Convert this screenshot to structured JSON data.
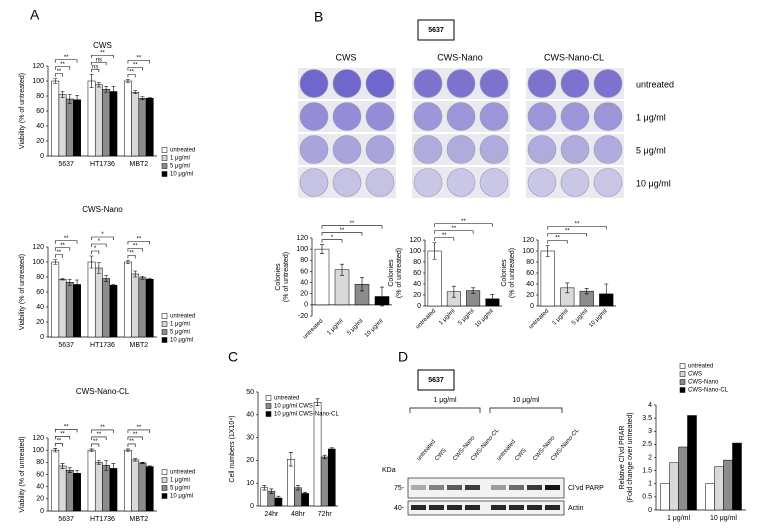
{
  "panel_labels": [
    "A",
    "B",
    "C",
    "D"
  ],
  "colony_assay": {
    "cell_line": "5637",
    "columns": [
      "CWS",
      "CWS-Nano",
      "CWS-Nano-CL"
    ],
    "rows": [
      "untreated",
      "1 μg/ml",
      "5 μg/ml",
      "10 μg/ml"
    ]
  },
  "western_blot": {
    "cell_line": "5637",
    "doses": [
      "1 μg/ml",
      "10 μg/ml"
    ],
    "lanes": [
      "untreated",
      "CWS",
      "CWS-Nano",
      "CWS-Nano-CL"
    ],
    "kda_label": "KDa",
    "markers": [
      "75-",
      "40-"
    ],
    "bands": [
      "Cl'vd PARP",
      "Actin"
    ]
  },
  "chart_data": [
    {
      "type": "bar",
      "title": "CWS",
      "ylabel": [
        "Viability (% of untreated)"
      ],
      "categories": [
        "5637",
        "HT1736",
        "MBT2"
      ],
      "series": [
        {
          "name": "untreated",
          "color": "#ffffff",
          "values": [
            100,
            100,
            100
          ],
          "errors": [
            3,
            9,
            2
          ]
        },
        {
          "name": "1 μg/ml",
          "color": "#d9d9d9",
          "values": [
            82,
            95,
            85
          ],
          "errors": [
            4,
            3,
            2
          ]
        },
        {
          "name": "5 μg/ml",
          "color": "#8c8c8c",
          "values": [
            76,
            89,
            77
          ],
          "errors": [
            6,
            4,
            2
          ]
        },
        {
          "name": "10 μg/ml",
          "color": "#000000",
          "values": [
            75,
            86,
            77
          ],
          "errors": [
            6,
            7,
            1
          ]
        }
      ],
      "significance": [
        [
          "**",
          "**",
          "**"
        ],
        [
          "ns",
          "ns",
          "**"
        ],
        [
          "**",
          "**",
          "**"
        ]
      ],
      "ylim": [
        0,
        120
      ],
      "yticks": [
        0,
        20,
        40,
        60,
        80,
        100,
        120
      ]
    },
    {
      "type": "bar",
      "title": "CWS-Nano",
      "ylabel": [
        "Viability (% of untreated)"
      ],
      "categories": [
        "5637",
        "HT1736",
        "MBT2"
      ],
      "series": [
        {
          "name": "untreated",
          "color": "#ffffff",
          "values": [
            100,
            100,
            100
          ],
          "errors": [
            3,
            8,
            2
          ]
        },
        {
          "name": "1 μg/ml",
          "color": "#d9d9d9",
          "values": [
            77,
            92,
            84
          ],
          "errors": [
            1,
            7,
            4
          ]
        },
        {
          "name": "5 μg/ml",
          "color": "#8c8c8c",
          "values": [
            73,
            78,
            79
          ],
          "errors": [
            4,
            4,
            2
          ]
        },
        {
          "name": "10 μg/ml",
          "color": "#000000",
          "values": [
            70,
            69,
            77
          ],
          "errors": [
            6,
            1,
            1
          ]
        }
      ],
      "significance": [
        [
          "**",
          "**",
          "**"
        ],
        [
          "*",
          "*",
          "*"
        ],
        [
          "**",
          "**",
          "**"
        ]
      ],
      "ylim": [
        0,
        120
      ],
      "yticks": [
        0,
        20,
        40,
        60,
        80,
        100,
        120
      ]
    },
    {
      "type": "bar",
      "title": "CWS-Nano-CL",
      "ylabel": [
        "Viability (% of untreated)"
      ],
      "categories": [
        "5637",
        "HT1736",
        "MBT2"
      ],
      "series": [
        {
          "name": "untreated",
          "color": "#ffffff",
          "values": [
            100,
            100,
            100
          ],
          "errors": [
            3,
            2,
            2
          ]
        },
        {
          "name": "1 μg/ml",
          "color": "#d9d9d9",
          "values": [
            74,
            80,
            84
          ],
          "errors": [
            4,
            3,
            2
          ]
        },
        {
          "name": "5 μg/ml",
          "color": "#8c8c8c",
          "values": [
            67,
            75,
            79
          ],
          "errors": [
            4,
            8,
            1
          ]
        },
        {
          "name": "10 μg/ml",
          "color": "#000000",
          "values": [
            62,
            70,
            73
          ],
          "errors": [
            5,
            8,
            1
          ]
        }
      ],
      "significance": [
        [
          "**",
          "**",
          "**"
        ],
        [
          "**",
          "**",
          "**"
        ],
        [
          "**",
          "**",
          "**"
        ]
      ],
      "ylim": [
        0,
        120
      ],
      "yticks": [
        0,
        20,
        40,
        60,
        80,
        100,
        120
      ]
    },
    {
      "type": "bar",
      "ylabel": [
        "Colonies",
        "(% of untreated)"
      ],
      "categories": [
        "untreated",
        "1 μg/ml",
        "5 μg/ml",
        "10 μg/ml"
      ],
      "values": [
        100,
        63,
        37,
        15
      ],
      "errors": [
        8,
        10,
        12,
        17
      ],
      "colors": [
        "#ffffff",
        "#d9d9d9",
        "#8c8c8c",
        "#000000"
      ],
      "significance": [
        "*",
        "**",
        "**"
      ],
      "ylim": [
        -20,
        120
      ],
      "yticks": [
        -20,
        0,
        20,
        40,
        60,
        80,
        100,
        120
      ]
    },
    {
      "type": "bar",
      "ylabel": [
        "Colonies",
        "(% of untreated)"
      ],
      "categories": [
        "untreated",
        "1 μg/ml",
        "5 μg/ml",
        "10 μg/ml"
      ],
      "values": [
        100,
        26,
        28,
        13
      ],
      "errors": [
        15,
        10,
        5,
        8
      ],
      "colors": [
        "#ffffff",
        "#d9d9d9",
        "#8c8c8c",
        "#000000"
      ],
      "significance": [
        "**",
        "**",
        "**"
      ],
      "ylim": [
        0,
        120
      ],
      "yticks": [
        0,
        20,
        40,
        60,
        80,
        100,
        120
      ]
    },
    {
      "type": "bar",
      "ylabel": [
        "Colonies",
        "(% of untreated)"
      ],
      "categories": [
        "untreated",
        "1 μg/ml",
        "5 μg/ml",
        "10 μg/ml"
      ],
      "values": [
        100,
        33,
        27,
        22
      ],
      "errors": [
        10,
        9,
        5,
        18
      ],
      "colors": [
        "#ffffff",
        "#d9d9d9",
        "#8c8c8c",
        "#000000"
      ],
      "significance": [
        "**",
        "**",
        "**"
      ],
      "ylim": [
        0,
        120
      ],
      "yticks": [
        0,
        20,
        40,
        60,
        80,
        100,
        120
      ]
    },
    {
      "type": "bar",
      "ylabel": [
        "Cell numbers (1X10⁴)"
      ],
      "categories": [
        "24hr",
        "48hr",
        "72hr"
      ],
      "series": [
        {
          "name": "untreated",
          "color": "#ffffff",
          "values": [
            8,
            20.5,
            45.5
          ],
          "errors": [
            1,
            3,
            1.5
          ]
        },
        {
          "name": "10 μg/ml CWS",
          "color": "#8c8c8c",
          "values": [
            6.5,
            8,
            21.5
          ],
          "errors": [
            1,
            1,
            0.8
          ]
        },
        {
          "name": "10 μg/ml CWS-Nano-CL",
          "color": "#000000",
          "values": [
            3.5,
            5.5,
            25
          ],
          "errors": [
            0.8,
            0.5,
            0.5
          ]
        }
      ],
      "ylim": [
        0,
        50
      ],
      "yticks": [
        0,
        10,
        20,
        30,
        40,
        50
      ]
    },
    {
      "type": "bar",
      "ylabel": [
        "Relative Cl'vd PRAR",
        "(Fold change over untreated)"
      ],
      "categories": [
        "1 μg/ml",
        "10 μg/ml"
      ],
      "series": [
        {
          "name": "untreated",
          "color": "#ffffff",
          "values": [
            1,
            1
          ]
        },
        {
          "name": "CWS",
          "color": "#d9d9d9",
          "values": [
            1.8,
            1.65
          ]
        },
        {
          "name": "CWS-Nano",
          "color": "#8c8c8c",
          "values": [
            2.4,
            1.9
          ]
        },
        {
          "name": "CWS-Nano-CL",
          "color": "#000000",
          "values": [
            3.6,
            2.55
          ]
        }
      ],
      "ylim": [
        0,
        4
      ],
      "yticks": [
        0,
        0.5,
        1,
        1.5,
        2,
        2.5,
        3,
        3.5,
        4
      ]
    }
  ]
}
